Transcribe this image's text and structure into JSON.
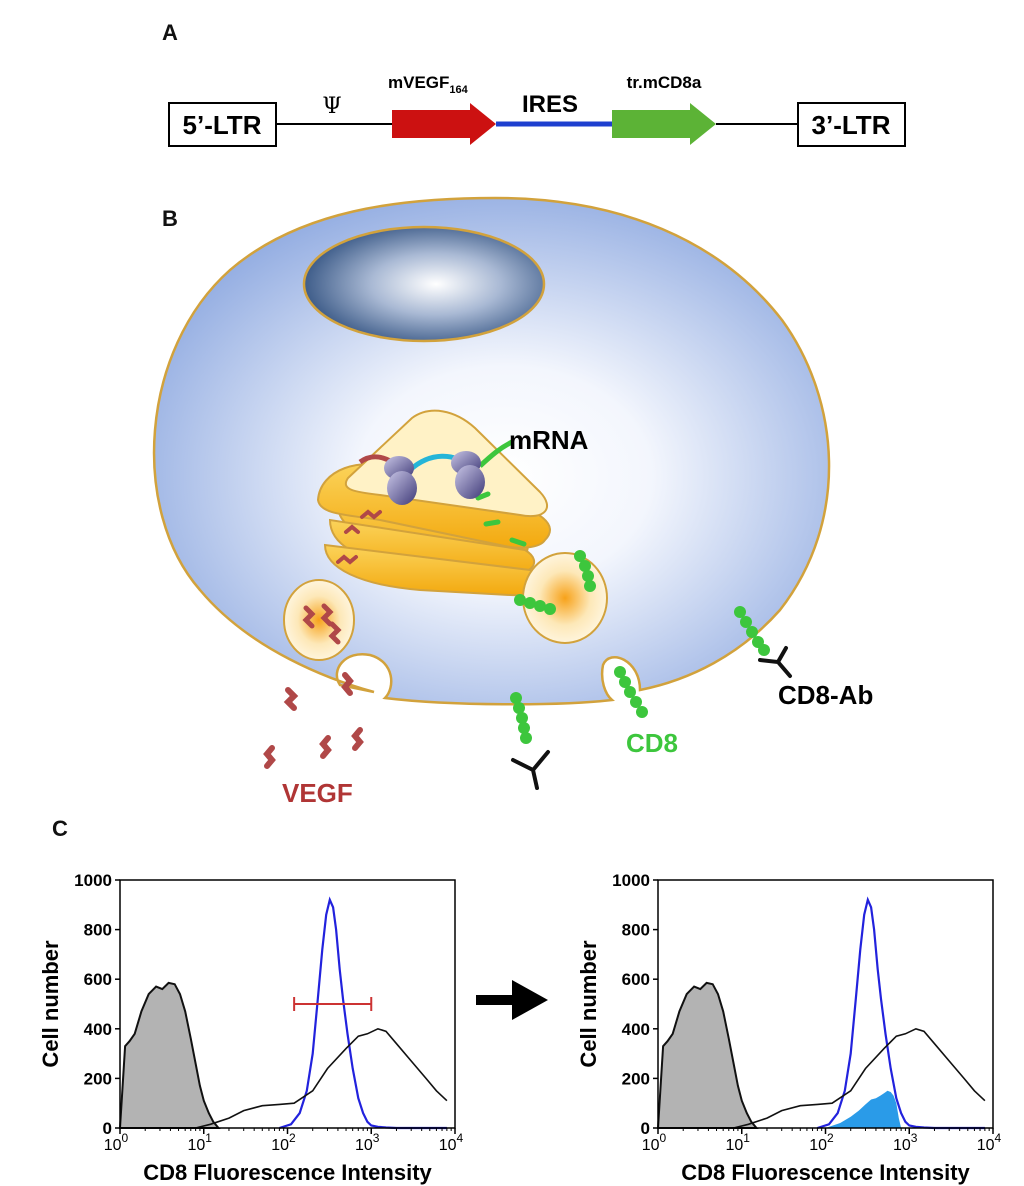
{
  "panels": {
    "a": "A",
    "b": "B",
    "c": "C"
  },
  "construct": {
    "ltr5": "5’-LTR",
    "psi": "Ψ",
    "vegf": "mVEGF",
    "vegf_sub": "164",
    "ires": "IRES",
    "cd8a": "tr.mCD8a",
    "ltr3": "3’-LTR"
  },
  "cell": {
    "mrna": "mRNA",
    "vegf": "VEGF",
    "cd8": "CD8",
    "cd8_ab": "CD8-Ab"
  },
  "colors": {
    "vegf_arrow": "#cc1111",
    "ires_line": "#1e3fcf",
    "cd8_arrow": "#5cb336",
    "cd8_green": "#3dc63d",
    "vegf_red": "#b04848",
    "membrane": "#d2a23c",
    "control_fill": "#b3b3b3",
    "blue_curve": "#2222dd",
    "filled_blue": "#2a9be8",
    "gate_red": "#cc3333"
  },
  "chart_data": [
    {
      "type": "area",
      "ylabel": "Cell number",
      "xlabel": "CD8 Fluorescence Intensity",
      "xscale": "log",
      "xlim": [
        1,
        10000
      ],
      "ylim": [
        0,
        1000
      ],
      "yticks": [
        "0",
        "200",
        "400",
        "600",
        "800",
        "1000"
      ],
      "xticks": [
        {
          "base": "10",
          "exp": "0"
        },
        {
          "base": "10",
          "exp": "1"
        },
        {
          "base": "10",
          "exp": "2"
        },
        {
          "base": "10",
          "exp": "3"
        },
        {
          "base": "10",
          "exp": "4"
        }
      ],
      "series": [
        {
          "style": "filled-gray",
          "x": [
            1,
            1.15,
            1.3,
            1.5,
            1.8,
            2.2,
            2.7,
            3.2,
            3.8,
            4.5,
            5.2,
            6,
            7,
            8,
            9,
            10,
            11.5,
            13,
            15
          ],
          "values": [
            0,
            330,
            350,
            380,
            470,
            540,
            570,
            560,
            585,
            580,
            540,
            470,
            360,
            260,
            170,
            110,
            60,
            25,
            0
          ]
        },
        {
          "style": "line-blue",
          "x": [
            80,
            110,
            140,
            170,
            200,
            230,
            260,
            290,
            320,
            350,
            380,
            420,
            460,
            520,
            600,
            700,
            800,
            900,
            1000,
            1200,
            1500,
            2000,
            3000,
            5000,
            8000
          ],
          "values": [
            0,
            15,
            60,
            150,
            300,
            520,
            720,
            860,
            920,
            890,
            800,
            640,
            520,
            380,
            240,
            120,
            60,
            25,
            10,
            5,
            2,
            0,
            0,
            0,
            0
          ]
        },
        {
          "style": "line-black",
          "x": [
            1,
            1.3,
            2,
            3,
            5,
            8,
            12,
            20,
            30,
            50,
            80,
            120,
            200,
            300,
            500,
            700,
            900,
            1200,
            1500,
            2000,
            3000,
            4500,
            6000,
            8000
          ],
          "values": [
            0,
            0,
            0,
            0,
            0,
            0,
            15,
            40,
            70,
            90,
            95,
            100,
            150,
            240,
            320,
            370,
            380,
            400,
            390,
            340,
            270,
            200,
            150,
            110
          ]
        },
        {
          "style": "gate",
          "x": [
            120,
            1000
          ],
          "values": [
            500,
            500
          ]
        }
      ]
    },
    {
      "type": "area",
      "ylabel": "Cell number",
      "xlabel": "CD8 Fluorescence Intensity",
      "xscale": "log",
      "xlim": [
        1,
        10000
      ],
      "ylim": [
        0,
        1000
      ],
      "yticks": [
        "0",
        "200",
        "400",
        "600",
        "800",
        "1000"
      ],
      "xticks": [
        {
          "base": "10",
          "exp": "0"
        },
        {
          "base": "10",
          "exp": "1"
        },
        {
          "base": "10",
          "exp": "2"
        },
        {
          "base": "10",
          "exp": "3"
        },
        {
          "base": "10",
          "exp": "4"
        }
      ],
      "series": [
        {
          "style": "filled-gray",
          "x": [
            1,
            1.15,
            1.3,
            1.5,
            1.8,
            2.2,
            2.7,
            3.2,
            3.8,
            4.5,
            5.2,
            6,
            7,
            8,
            9,
            10,
            11.5,
            13,
            15
          ],
          "values": [
            0,
            330,
            350,
            380,
            470,
            540,
            570,
            560,
            585,
            580,
            540,
            470,
            360,
            260,
            170,
            110,
            60,
            25,
            0
          ]
        },
        {
          "style": "line-blue",
          "x": [
            80,
            110,
            140,
            170,
            200,
            230,
            260,
            290,
            320,
            350,
            380,
            420,
            460,
            520,
            600,
            700,
            800,
            900,
            1000,
            1200,
            1500,
            2000,
            3000,
            5000,
            8000
          ],
          "values": [
            0,
            15,
            60,
            150,
            300,
            520,
            720,
            860,
            920,
            890,
            800,
            640,
            520,
            380,
            240,
            120,
            60,
            25,
            10,
            5,
            2,
            0,
            0,
            0,
            0
          ]
        },
        {
          "style": "line-black",
          "x": [
            1,
            1.3,
            2,
            3,
            5,
            8,
            12,
            20,
            30,
            50,
            80,
            120,
            200,
            300,
            500,
            700,
            900,
            1200,
            1500,
            2000,
            3000,
            4500,
            6000,
            8000
          ],
          "values": [
            0,
            0,
            0,
            0,
            0,
            0,
            15,
            40,
            70,
            90,
            95,
            100,
            150,
            240,
            320,
            370,
            380,
            400,
            390,
            340,
            270,
            200,
            150,
            110
          ]
        },
        {
          "style": "filled-blue",
          "x": [
            100,
            150,
            200,
            250,
            300,
            350,
            400,
            450,
            500,
            550,
            600,
            650,
            700,
            750,
            800
          ],
          "values": [
            0,
            20,
            45,
            70,
            95,
            115,
            120,
            130,
            140,
            150,
            145,
            130,
            100,
            40,
            0
          ]
        }
      ]
    }
  ]
}
